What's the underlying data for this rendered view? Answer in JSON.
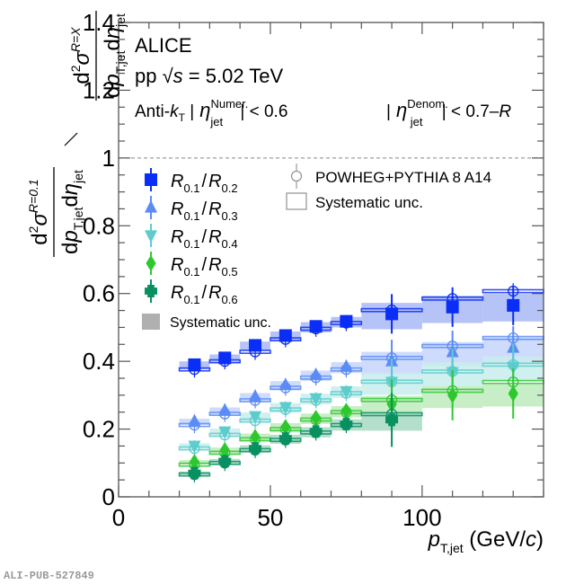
{
  "chart_data": {
    "type": "scatter",
    "title": "",
    "experiment": "ALICE",
    "collision": "pp",
    "energy_label": "= 5.02 TeV",
    "sqrt_s": "√s",
    "jet_algo": "Anti-k_T",
    "eta_num_cut": "|η_jet^Numer.| < 0.6",
    "eta_den_cut": "|η_jet^Denom.| < 0.7–R",
    "xlabel": "p_T,jet (GeV/c)",
    "ylabel": "(d²σ^{R=0.1}/dp_T,jet dη_jet) / (d²σ^{R=X}/dp_T,jet dη_jet)",
    "xlim": [
      0,
      140
    ],
    "ylim": [
      0,
      1.4
    ],
    "xticks": [
      0,
      50,
      100
    ],
    "yticks": [
      0,
      0.2,
      0.4,
      0.6,
      0.8,
      1,
      1.2,
      1.4
    ],
    "reference_line": 1,
    "bins": [
      [
        20,
        30
      ],
      [
        30,
        40
      ],
      [
        40,
        50
      ],
      [
        50,
        60
      ],
      [
        60,
        70
      ],
      [
        70,
        80
      ],
      [
        80,
        100
      ],
      [
        100,
        120
      ],
      [
        120,
        140
      ]
    ],
    "x": [
      25,
      35,
      45,
      55,
      65,
      75,
      90,
      110,
      130
    ],
    "series": [
      {
        "name": "R0.1/R0.2",
        "num": "0.1",
        "den": "0.2",
        "marker": "square",
        "color": "#0a2ef5",
        "fill": "#a9b8f6",
        "values": [
          0.39,
          0.41,
          0.447,
          0.476,
          0.503,
          0.518,
          0.54,
          0.56,
          0.565
        ],
        "powheg": [
          0.376,
          0.4,
          0.428,
          0.465,
          0.496,
          0.513,
          0.551,
          0.585,
          0.607
        ]
      },
      {
        "name": "R0.1/R0.3",
        "num": "0.1",
        "den": "0.3",
        "marker": "triangle-up",
        "color": "#5b8cf5",
        "fill": "#c6d5fb",
        "values": [
          0.223,
          0.255,
          0.296,
          0.33,
          0.36,
          0.384,
          0.4,
          0.427,
          0.44
        ],
        "powheg": [
          0.212,
          0.245,
          0.285,
          0.322,
          0.352,
          0.376,
          0.41,
          0.445,
          0.469
        ]
      },
      {
        "name": "R0.1/R0.4",
        "num": "0.1",
        "den": "0.4",
        "marker": "triangle-down",
        "color": "#5ccccc",
        "fill": "#c8ecec",
        "values": [
          0.151,
          0.193,
          0.238,
          0.265,
          0.291,
          0.312,
          0.339,
          0.368,
          0.384
        ],
        "powheg": [
          0.143,
          0.183,
          0.225,
          0.258,
          0.285,
          0.306,
          0.34,
          0.37,
          0.39
        ]
      },
      {
        "name": "R0.1/R0.5",
        "num": "0.1",
        "den": "0.5",
        "marker": "diamond",
        "color": "#2ec82e",
        "fill": "#bdebbd",
        "values": [
          0.103,
          0.138,
          0.177,
          0.206,
          0.233,
          0.254,
          0.273,
          0.3,
          0.305
        ],
        "powheg": [
          0.095,
          0.13,
          0.17,
          0.2,
          0.228,
          0.25,
          0.286,
          0.313,
          0.339
        ]
      },
      {
        "name": "R0.1/R0.6",
        "num": "0.1",
        "den": "0.6",
        "marker": "cross",
        "color": "#089060",
        "fill": "#a7d9c4",
        "values": [
          0.07,
          0.105,
          0.143,
          0.172,
          0.193,
          0.215,
          0.227
        ],
        "powheg": [
          0.066,
          0.1,
          0.138,
          0.168,
          0.19,
          0.212,
          0.244
        ]
      }
    ],
    "legend": {
      "data_prefix": "R",
      "syst_label": "Systematic unc.",
      "model_label": "POWHEG+PYTHIA 8 A14",
      "model_syst_label": "Systematic unc.",
      "placement": "top-left"
    },
    "footer_id": "ALI-PUB-527849"
  }
}
